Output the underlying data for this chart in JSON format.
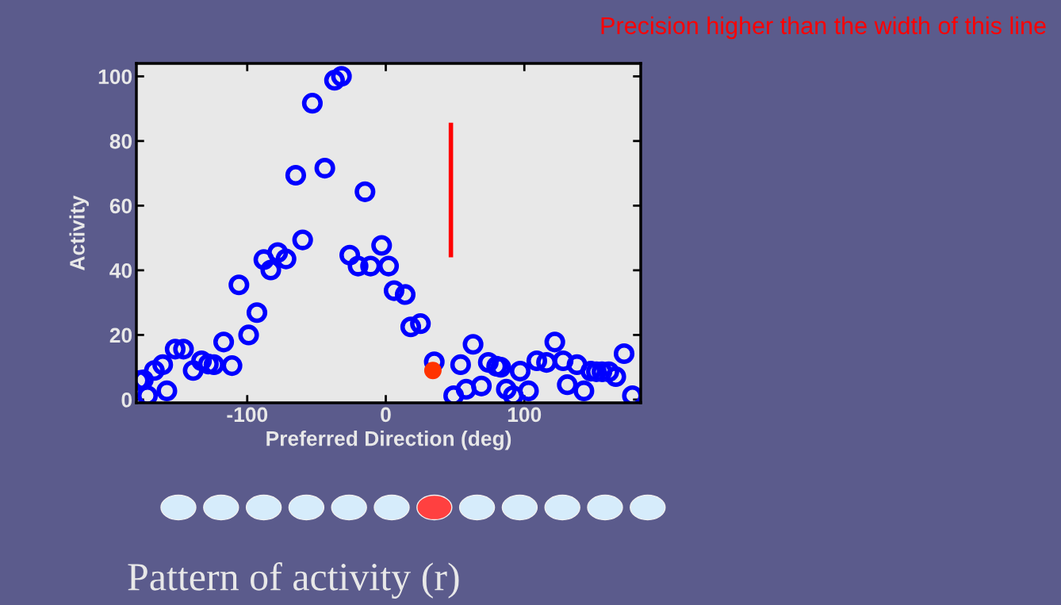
{
  "chart_data": {
    "type": "scatter",
    "title": "Pattern of activity (r)",
    "xlabel": "Preferred Direction (deg)",
    "ylabel": "Activity",
    "annotations": [
      "Precision higher than the width of this line"
    ],
    "xlim": [
      -180,
      184
    ],
    "xticks": [
      -100,
      0,
      100
    ],
    "ylim": [
      -1,
      104
    ],
    "yticks": [
      0,
      20,
      40,
      60,
      80,
      100
    ],
    "grid": false,
    "legend": false,
    "marker": "circle",
    "series": [
      {
        "color": "#0000ff",
        "x": [
          -178,
          -175,
          -172,
          -167,
          -161,
          -158,
          -152,
          -146,
          -139,
          -133,
          -128,
          -124,
          -117,
          -111,
          -106,
          -99,
          -93,
          -88,
          -83,
          -78,
          -72,
          -60,
          -65,
          -53,
          -44,
          -37,
          -32,
          -26,
          -20,
          -15,
          -11,
          -3,
          2,
          6,
          14,
          18,
          25,
          35,
          49,
          54,
          58,
          63,
          69,
          74,
          80,
          83,
          87,
          92,
          97,
          103,
          109,
          116,
          122,
          128,
          131,
          138,
          143,
          148,
          152,
          156,
          161,
          166,
          172,
          178
        ],
        "values": [
          5.9,
          6.1,
          1.2,
          9.0,
          10.8,
          2.7,
          15.6,
          15.6,
          9.0,
          12.0,
          11.0,
          10.8,
          17.8,
          10.5,
          35.5,
          20.0,
          26.9,
          43.3,
          40.1,
          45.5,
          43.5,
          49.4,
          69.4,
          91.7,
          71.6,
          98.8,
          100,
          44.7,
          41.3,
          64.3,
          41.3,
          47.7,
          41.3,
          33.7,
          32.5,
          22.5,
          23.5,
          11.7,
          1.2,
          10.8,
          3.2,
          17.1,
          4.2,
          11.5,
          10.3,
          10.0,
          3.2,
          1.2,
          8.8,
          2.7,
          12.0,
          11.5,
          17.8,
          12.0,
          4.6,
          10.8,
          2.7,
          8.8,
          8.6,
          8.6,
          8.6,
          7.1,
          14.2,
          1.2
        ]
      },
      {
        "color": "#ff3300",
        "x": [
          34
        ],
        "values": [
          9.0
        ]
      },
      {
        "type": "line",
        "color": "#ff0000",
        "marker": "none",
        "x": [
          47,
          47
        ],
        "values": [
          44.7,
          85
        ]
      }
    ]
  }
}
